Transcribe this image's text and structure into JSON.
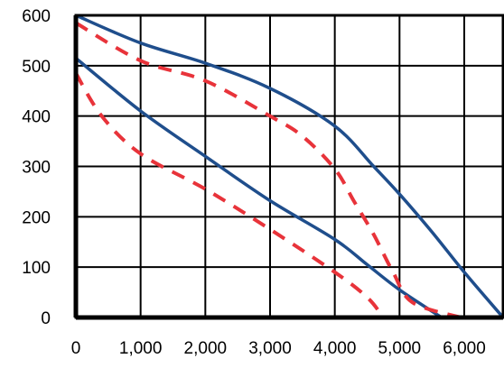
{
  "chart_data": {
    "type": "line",
    "title": "",
    "xlabel": "",
    "ylabel": "",
    "xlim": [
      0,
      6600
    ],
    "ylim": [
      0,
      600
    ],
    "x_ticks": [
      0,
      1000,
      2000,
      3000,
      4000,
      5000,
      6000
    ],
    "x_tick_labels": [
      "0",
      "1,000",
      "2,000",
      "3,000",
      "4,000",
      "5,000",
      "6,000"
    ],
    "y_ticks": [
      0,
      100,
      200,
      300,
      400,
      500,
      600
    ],
    "y_tick_labels": [
      "0",
      "100",
      "200",
      "300",
      "400",
      "500",
      "600"
    ],
    "grid": true,
    "legend": "none",
    "series": [
      {
        "color": "#1f4e8c",
        "style": "solid",
        "points": [
          [
            0,
            600
          ],
          [
            1000,
            545
          ],
          [
            2000,
            505
          ],
          [
            3000,
            455
          ],
          [
            4000,
            380
          ],
          [
            4600,
            300
          ],
          [
            5000,
            245
          ],
          [
            5500,
            170
          ],
          [
            6000,
            90
          ],
          [
            6600,
            0
          ]
        ]
      },
      {
        "color": "#1f4e8c",
        "style": "solid",
        "points": [
          [
            0,
            515
          ],
          [
            1000,
            410
          ],
          [
            2000,
            320
          ],
          [
            3000,
            232
          ],
          [
            4000,
            155
          ],
          [
            4500,
            105
          ],
          [
            5000,
            55
          ],
          [
            5650,
            0
          ]
        ]
      },
      {
        "color": "#e8333a",
        "style": "dashed",
        "points": [
          [
            0,
            585
          ],
          [
            1000,
            510
          ],
          [
            2000,
            470
          ],
          [
            3000,
            400
          ],
          [
            3500,
            360
          ],
          [
            4000,
            295
          ],
          [
            4300,
            230
          ],
          [
            4600,
            165
          ],
          [
            4900,
            90
          ],
          [
            5200,
            30
          ],
          [
            5950,
            0
          ]
        ]
      },
      {
        "color": "#e8333a",
        "style": "dashed",
        "points": [
          [
            0,
            485
          ],
          [
            400,
            400
          ],
          [
            1000,
            325
          ],
          [
            2000,
            255
          ],
          [
            3000,
            175
          ],
          [
            4000,
            90
          ],
          [
            4500,
            40
          ],
          [
            4750,
            0
          ]
        ]
      }
    ]
  }
}
